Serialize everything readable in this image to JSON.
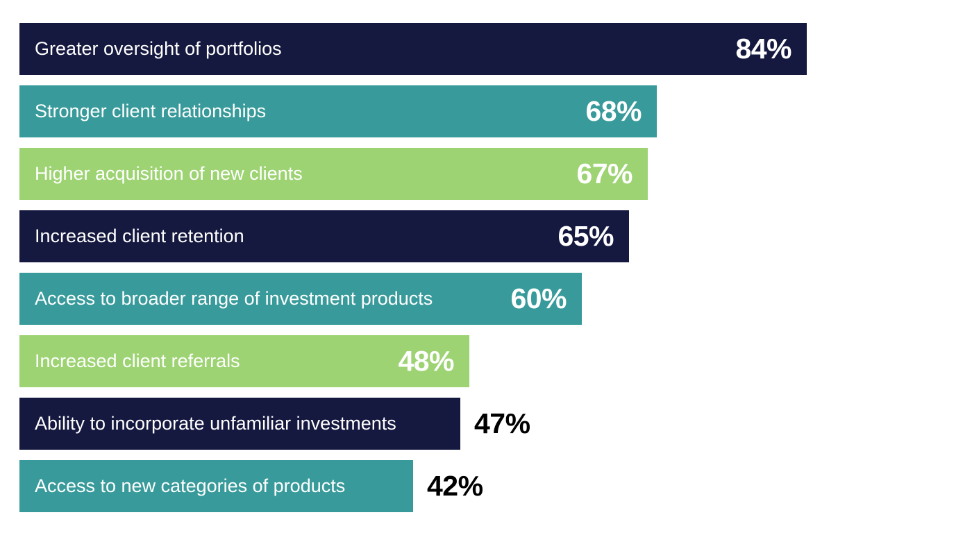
{
  "chart_data": {
    "type": "bar",
    "orientation": "horizontal",
    "title": "",
    "xlabel": "",
    "ylabel": "",
    "xlim": [
      0,
      100
    ],
    "value_suffix": "%",
    "grid": false,
    "legend": "none",
    "bars": [
      {
        "label": "Greater oversight of portfolios",
        "value": 84,
        "display": "84%",
        "color": "#15183f",
        "label_position": "inside"
      },
      {
        "label": "Stronger client relationships",
        "value": 68,
        "display": "68%",
        "color": "#389a9a",
        "label_position": "inside"
      },
      {
        "label": "Higher acquisition of new clients",
        "value": 67,
        "display": "67%",
        "color": "#9dd373",
        "label_position": "inside"
      },
      {
        "label": "Increased client retention",
        "value": 65,
        "display": "65%",
        "color": "#15183f",
        "label_position": "inside"
      },
      {
        "label": "Access to broader range of investment products",
        "value": 60,
        "display": "60%",
        "color": "#389a9a",
        "label_position": "inside"
      },
      {
        "label": "Increased client referrals",
        "value": 48,
        "display": "48%",
        "color": "#9dd373",
        "label_position": "inside"
      },
      {
        "label": "Ability to incorporate unfamiliar investments",
        "value": 47,
        "display": "47%",
        "color": "#15183f",
        "label_position": "outside"
      },
      {
        "label": "Access to new categories of products",
        "value": 42,
        "display": "42%",
        "color": "#389a9a",
        "label_position": "outside"
      }
    ]
  }
}
